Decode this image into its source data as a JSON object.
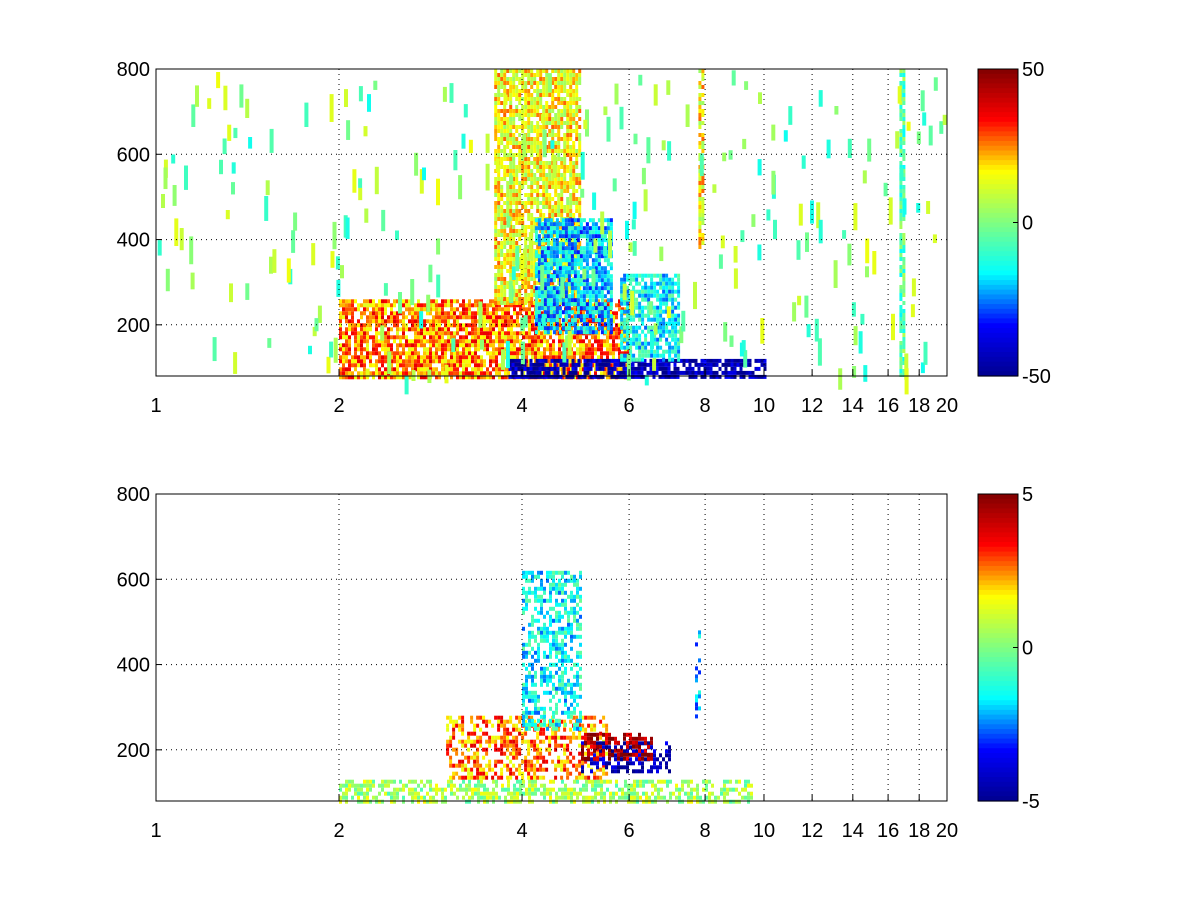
{
  "figure": {
    "background": "#ffffff",
    "colormap": "jet",
    "colormap_stops": [
      "#00008f",
      "#0000ff",
      "#00ffff",
      "#80ff80",
      "#ffff00",
      "#ff0000",
      "#800000"
    ]
  },
  "chart_data": [
    {
      "type": "heatmap",
      "title": "",
      "xlabel": "",
      "ylabel": "",
      "xlim": [
        1,
        20
      ],
      "ylim": [
        80,
        800
      ],
      "x_scale": "log",
      "x_ticks": [
        1,
        2,
        4,
        6,
        8,
        10,
        12,
        14,
        16,
        18,
        20
      ],
      "x_tick_labels": [
        "1",
        "2",
        "4",
        "6",
        "8",
        "10",
        "12",
        "14",
        "16",
        "18",
        "20"
      ],
      "y_ticks": [
        200,
        400,
        600,
        800
      ],
      "y_tick_labels": [
        "200",
        "400",
        "600",
        "800"
      ],
      "grid": true,
      "colorbar": {
        "range": [
          -50,
          50
        ],
        "ticks": [
          50,
          0,
          -50
        ],
        "tick_labels": [
          "50",
          "0",
          "-50"
        ]
      },
      "features": [
        {
          "x": [
            2.0,
            6.0
          ],
          "y": [
            80,
            260
          ],
          "value": 25
        },
        {
          "x": [
            3.6,
            5.0
          ],
          "y": [
            250,
            800
          ],
          "value": 15
        },
        {
          "x": [
            4.2,
            5.6
          ],
          "y": [
            180,
            450
          ],
          "value": -20
        },
        {
          "x": [
            3.8,
            10.0
          ],
          "y": [
            80,
            120
          ],
          "value": -45
        },
        {
          "x": [
            5.8,
            7.2
          ],
          "y": [
            120,
            320
          ],
          "value": -15
        },
        {
          "x": [
            7.8,
            7.9
          ],
          "y": [
            380,
            800
          ],
          "value": 15
        },
        {
          "x": [
            16.7,
            16.9
          ],
          "y": [
            80,
            800
          ],
          "value": -5
        }
      ]
    },
    {
      "type": "heatmap",
      "title": "",
      "xlabel": "",
      "ylabel": "",
      "xlim": [
        1,
        20
      ],
      "ylim": [
        80,
        800
      ],
      "x_scale": "log",
      "x_ticks": [
        1,
        2,
        4,
        6,
        8,
        10,
        12,
        14,
        16,
        18,
        20
      ],
      "x_tick_labels": [
        "1",
        "2",
        "4",
        "6",
        "8",
        "10",
        "12",
        "14",
        "16",
        "18",
        "20"
      ],
      "y_ticks": [
        200,
        400,
        600,
        800
      ],
      "y_tick_labels": [
        "200",
        "400",
        "600",
        "800"
      ],
      "grid": true,
      "colorbar": {
        "range": [
          -5,
          5
        ],
        "ticks": [
          5,
          0,
          -5
        ],
        "tick_labels": [
          "5",
          "0",
          "-5"
        ]
      },
      "features": [
        {
          "x": [
            2.0,
            9.5
          ],
          "y": [
            80,
            130
          ],
          "value": 0.5
        },
        {
          "x": [
            3.0,
            5.5
          ],
          "y": [
            130,
            280
          ],
          "value": 2.5
        },
        {
          "x": [
            4.0,
            5.0
          ],
          "y": [
            250,
            620
          ],
          "value": -1.5
        },
        {
          "x": [
            5.0,
            7.0
          ],
          "y": [
            150,
            220
          ],
          "value": -4.5
        },
        {
          "x": [
            5.0,
            6.5
          ],
          "y": [
            180,
            240
          ],
          "value": 4.5
        },
        {
          "x": [
            7.7,
            7.8
          ],
          "y": [
            280,
            480
          ],
          "value": -2.0
        }
      ]
    }
  ]
}
